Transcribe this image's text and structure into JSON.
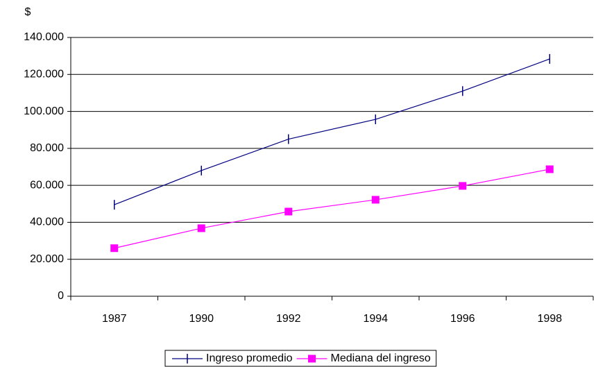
{
  "chart_data": {
    "type": "line",
    "y_label": "$",
    "categories": [
      "1987",
      "1990",
      "1992",
      "1994",
      "1996",
      "1998"
    ],
    "series": [
      {
        "name": "Ingreso promedio",
        "color": "#000080",
        "marker": "tick",
        "values": [
          49500,
          68000,
          85000,
          95700,
          111000,
          128400
        ]
      },
      {
        "name": "Mediana del ingreso",
        "color": "#ff00ff",
        "marker": "square",
        "values": [
          26000,
          36800,
          45800,
          52200,
          59700,
          68700
        ]
      }
    ],
    "ylim": [
      0,
      140000
    ],
    "yticks": [
      0,
      {
        "value": 20000,
        "label": "20.000"
      },
      {
        "value": 40000,
        "label": "40.000"
      },
      {
        "value": 60000,
        "label": "60.000"
      },
      {
        "value": 80000,
        "label": "80.000"
      },
      {
        "value": 100000,
        "label": "100.000"
      },
      {
        "value": 120000,
        "label": "120.000"
      },
      {
        "value": 140000,
        "label": "140.000"
      }
    ],
    "grid": true,
    "legend": "bottom"
  }
}
